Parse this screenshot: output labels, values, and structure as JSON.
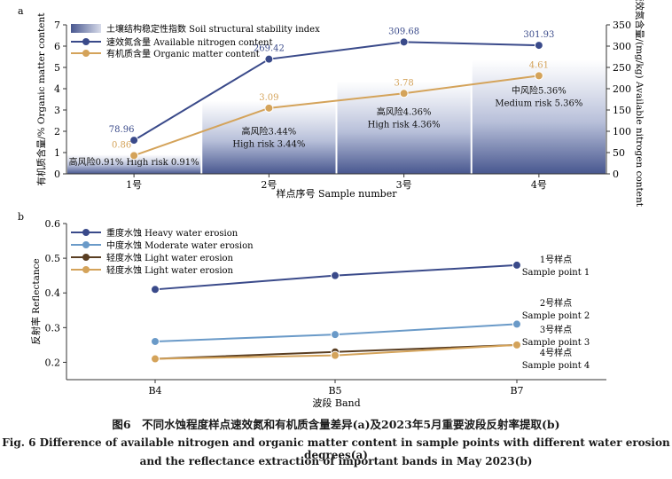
{
  "chart_data": [
    {
      "panel": "a",
      "type": "bar+line",
      "xlabel": "样点序号 Sample number",
      "categories": [
        "1号",
        "2号",
        "3号",
        "4号"
      ],
      "ylabel_left": "有机质含量/% Organic matter content",
      "ylabel_right": "速效氮含量/(mg/kg) Available nitrogen content",
      "ylim_left": [
        0,
        7
      ],
      "yticks_left": [
        0,
        1,
        2,
        3,
        4,
        5,
        6,
        7
      ],
      "ylim_right": [
        0,
        350
      ],
      "yticks_right": [
        0,
        50,
        100,
        150,
        200,
        250,
        300,
        350
      ],
      "bars": {
        "name": "土壤结构稳定性指数 Soil structural stability index",
        "values": [
          0.91,
          3.44,
          4.36,
          5.36
        ],
        "labels_line1": [
          "高风险0.91%  High risk 0.91%",
          "高风险3.44%",
          "高风险4.36%",
          "中风险5.36%"
        ],
        "labels_line2": [
          "",
          "High risk 3.44%",
          "High risk 4.36%",
          "Medium risk 5.36%"
        ]
      },
      "series": [
        {
          "name": "速效氮含量 Available nitrogen content",
          "axis": "right",
          "color": "#3a4a8a",
          "values": [
            78.96,
            269.42,
            309.68,
            301.93
          ],
          "labels": [
            "78.96",
            "269.42",
            "309.68",
            "301.93"
          ]
        },
        {
          "name": "有机质含量 Organic matter content",
          "axis": "left",
          "color": "#d4a35a",
          "values": [
            0.86,
            3.09,
            3.78,
            4.61
          ],
          "labels": [
            "0.86",
            "3.09",
            "3.78",
            "4.61"
          ]
        }
      ],
      "grid": false,
      "legend": "top-left"
    },
    {
      "panel": "b",
      "type": "line",
      "xlabel": "波段 Band",
      "ylabel": "反射率 Reflectance",
      "categories": [
        "B4",
        "B5",
        "B7"
      ],
      "ylim": [
        0.15,
        0.6
      ],
      "yticks": [
        0.2,
        0.3,
        0.4,
        0.5,
        0.6
      ],
      "series": [
        {
          "name": "重度水蚀 Heavy water erosion",
          "color": "#3a4a8a",
          "values": [
            0.41,
            0.45,
            0.48
          ],
          "annotation": [
            "1号样点",
            "Sample point 1"
          ]
        },
        {
          "name": "中度水蚀 Moderate water erosion",
          "color": "#6a9ac8",
          "values": [
            0.26,
            0.28,
            0.31
          ],
          "annotation": [
            "2号样点",
            "Sample point 2"
          ]
        },
        {
          "name": "轻度水蚀 Light water erosion",
          "color": "#5a3e22",
          "values": [
            0.21,
            0.23,
            0.25
          ],
          "annotation": [
            "3号样点",
            "Sample point 3"
          ]
        },
        {
          "name": "轻度水蚀 Light water erosion",
          "color": "#d4a35a",
          "values": [
            0.21,
            0.22,
            0.25
          ],
          "annotation": [
            "4号样点",
            "Sample point 4"
          ]
        }
      ],
      "grid": false,
      "legend": "top-left"
    }
  ],
  "caption": {
    "cn": "图6　不同水蚀程度样点速效氮和有机质含量差异(a)及2023年5月重要波段反射率提取(b)",
    "en_line1": "Fig. 6    Difference of available nitrogen and organic matter content in sample points with different water erosion degrees(a)",
    "en_line2": "and the reflectance extraction of important bands in May 2023(b)"
  }
}
